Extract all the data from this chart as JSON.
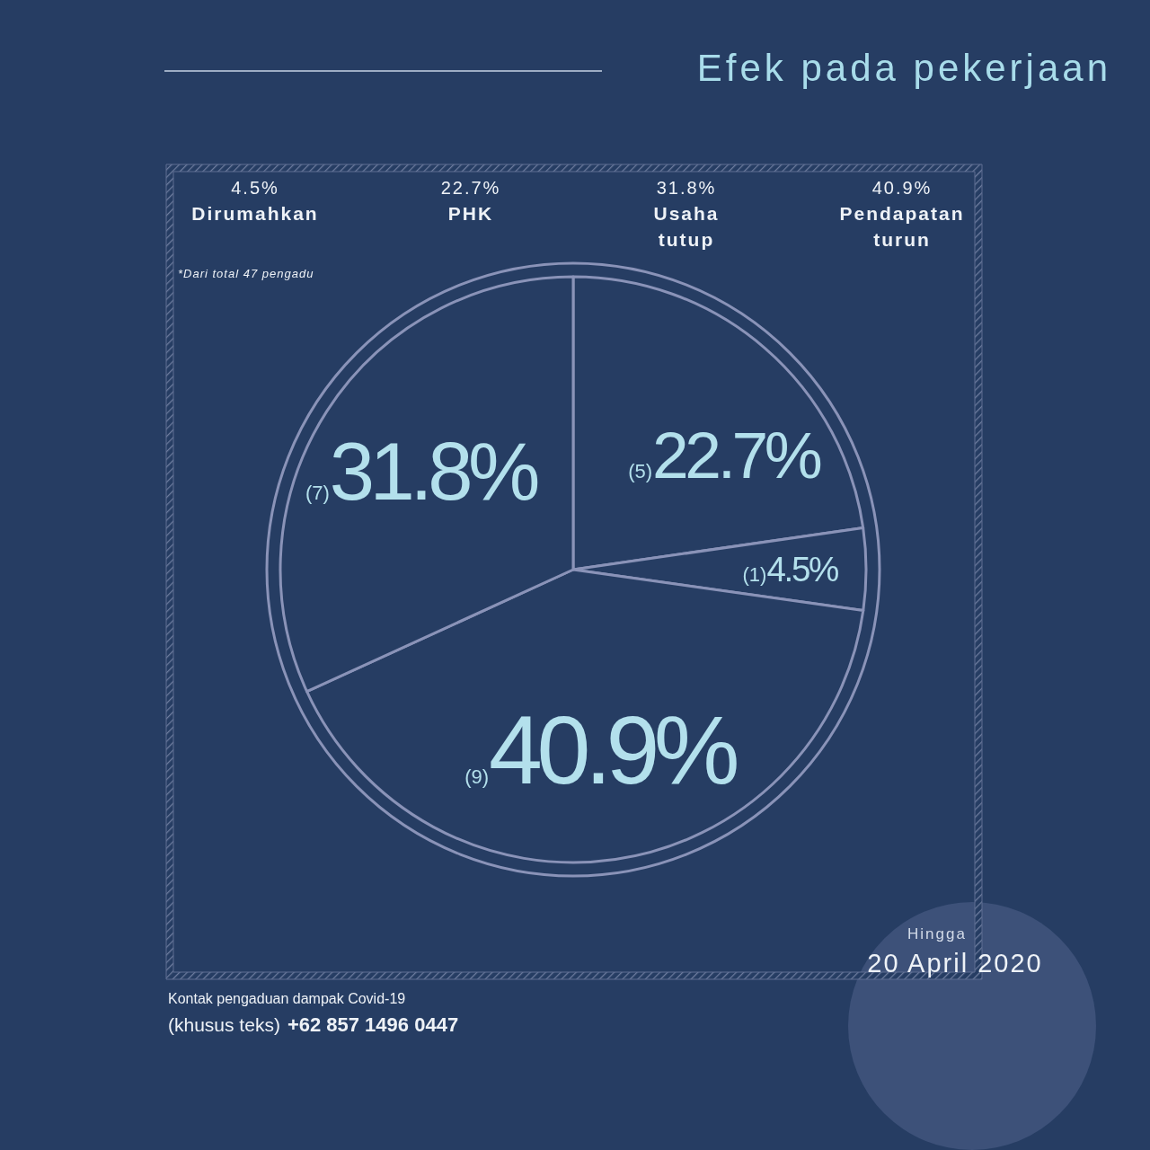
{
  "chart_data": [
    {
      "type": "other",
      "annotations": [
        "4.5%",
        "Dirumahkan",
        "22.7%",
        "PHK",
        "31.8%",
        "Usaha tutup",
        "40.9%",
        "Pendapatan turun"
      ]
    },
    {
      "type": "pie",
      "title": "Efek pada pekerjaan",
      "categories": [
        null,
        null,
        null,
        null
      ],
      "values": [
        22.7,
        4.5,
        40.9,
        31.8
      ],
      "colors": [
        "#263d63",
        "#263d63",
        "#263d63",
        "#263d63"
      ],
      "value_labels": [
        "(5)22.7%",
        "(1)4.5%",
        "(9)40.9%",
        "(7)31.8%"
      ],
      "annotations": [
        "*Dari total 47 pengadu",
        "Kontak pengaduan dampak Covid-19",
        "(khusus teks)",
        "+62 857 1496 0447",
        "Hingga",
        "20 April 2020"
      ]
    }
  ]
}
